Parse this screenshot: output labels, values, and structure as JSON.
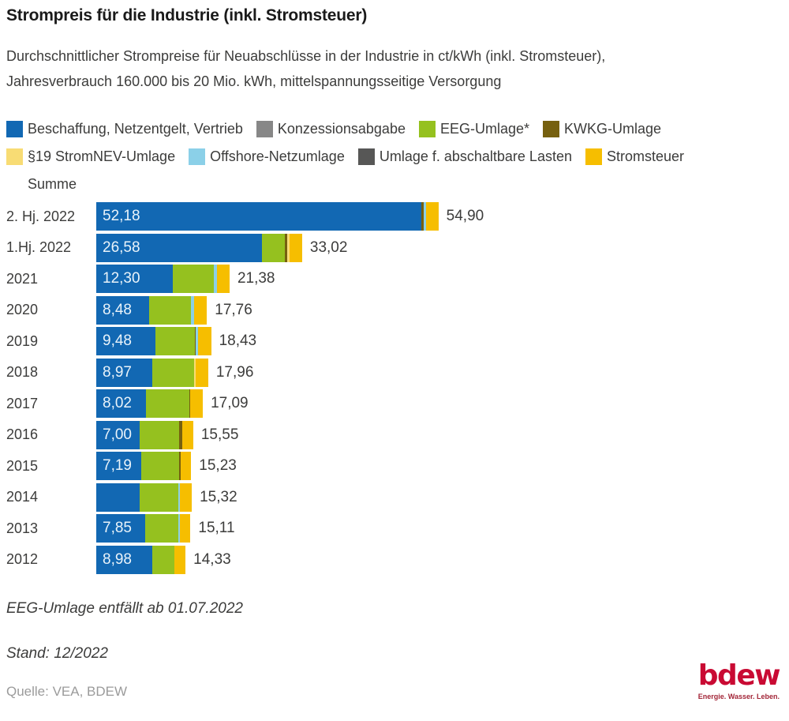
{
  "header": {
    "title": "Strompreis für die Industrie (inkl. Stromsteuer)",
    "subtitle": "Durchschnittlicher Strompreise für Neuabschlüsse in der Industrie in ct/kWh (inkl. Stromsteuer),\nJahresverbrauch 160.000 bis 20 Mio. kWh, mittelspannungsseitige Versorgung"
  },
  "legend": {
    "items": [
      {
        "label": "Beschaffung, Netzentgelt, Vertrieb",
        "color_key": "beschaffung"
      },
      {
        "label": "Konzessionsabgabe",
        "color_key": "konzession"
      },
      {
        "label": "EEG-Umlage*",
        "color_key": "eeg"
      },
      {
        "label": "KWKG-Umlage",
        "color_key": "kwkg"
      },
      {
        "label": "§19 StromNEV-Umlage",
        "color_key": "s19"
      },
      {
        "label": "Offshore-Netzumlage",
        "color_key": "offshore"
      },
      {
        "label": "Umlage f. abschaltbare Lasten",
        "color_key": "abla"
      },
      {
        "label": "Stromsteuer",
        "color_key": "stromsteuer"
      },
      {
        "label": "Summe",
        "color_key": null
      }
    ]
  },
  "chart_data": {
    "type": "bar",
    "orientation": "horizontal",
    "stacked": true,
    "unit": "ct/kWh",
    "legend_position": "top",
    "grid": false,
    "colors": {
      "beschaffung": "#1268b3",
      "konzession": "#878787",
      "eeg": "#95c11f",
      "kwkg": "#76600f",
      "s19": "#f8dc74",
      "offshore": "#8bd0e8",
      "abla": "#575756",
      "stromsteuer": "#f6be00"
    },
    "segment_names": {
      "beschaffung": "Beschaffung, Netzentgelt, Vertrieb",
      "konzession": "Konzessionsabgabe",
      "eeg": "EEG-Umlage*",
      "kwkg": "KWKG-Umlage",
      "s19": "§19 StromNEV-Umlage",
      "offshore": "Offshore-Netzumlage",
      "abla": "Umlage f. abschaltbare Lasten",
      "stromsteuer": "Stromsteuer"
    },
    "rows": [
      {
        "category": "2. Hj. 2022",
        "value_label": "52,18",
        "total_label": "54,90",
        "total": 54.9,
        "segments": [
          {
            "key": "beschaffung",
            "value": 52.18
          },
          {
            "key": "kwkg",
            "value": 0.38
          },
          {
            "key": "offshore",
            "value": 0.42
          },
          {
            "key": "stromsteuer",
            "value": 1.92
          }
        ]
      },
      {
        "category": "1.Hj. 2022",
        "value_label": "26,58",
        "total_label": "33,02",
        "total": 33.02,
        "segments": [
          {
            "key": "beschaffung",
            "value": 26.58
          },
          {
            "key": "eeg",
            "value": 3.72
          },
          {
            "key": "kwkg",
            "value": 0.38
          },
          {
            "key": "s19",
            "value": 0.35
          },
          {
            "key": "stromsteuer",
            "value": 1.99
          }
        ]
      },
      {
        "category": "2021",
        "value_label": "12,30",
        "total_label": "21,38",
        "total": 21.38,
        "segments": [
          {
            "key": "beschaffung",
            "value": 12.3
          },
          {
            "key": "eeg",
            "value": 6.5
          },
          {
            "key": "offshore",
            "value": 0.53
          },
          {
            "key": "stromsteuer",
            "value": 2.05
          }
        ]
      },
      {
        "category": "2020",
        "value_label": "8,48",
        "total_label": "17,76",
        "total": 17.76,
        "segments": [
          {
            "key": "beschaffung",
            "value": 8.48
          },
          {
            "key": "eeg",
            "value": 6.76
          },
          {
            "key": "offshore",
            "value": 0.47
          },
          {
            "key": "stromsteuer",
            "value": 2.05
          }
        ]
      },
      {
        "category": "2019",
        "value_label": "9,48",
        "total_label": "18,43",
        "total": 18.43,
        "segments": [
          {
            "key": "beschaffung",
            "value": 9.48
          },
          {
            "key": "eeg",
            "value": 6.41
          },
          {
            "key": "kwkg",
            "value": 0.1
          },
          {
            "key": "offshore",
            "value": 0.39
          },
          {
            "key": "stromsteuer",
            "value": 2.05
          }
        ]
      },
      {
        "category": "2018",
        "value_label": "8,97",
        "total_label": "17,96",
        "total": 17.96,
        "segments": [
          {
            "key": "beschaffung",
            "value": 8.97
          },
          {
            "key": "eeg",
            "value": 6.79
          },
          {
            "key": "s19",
            "value": 0.15
          },
          {
            "key": "stromsteuer",
            "value": 2.05
          }
        ]
      },
      {
        "category": "2017",
        "value_label": "8,02",
        "total_label": "17,09",
        "total": 17.09,
        "segments": [
          {
            "key": "beschaffung",
            "value": 8.02
          },
          {
            "key": "eeg",
            "value": 6.88
          },
          {
            "key": "kwkg",
            "value": 0.14
          },
          {
            "key": "stromsteuer",
            "value": 2.05
          }
        ]
      },
      {
        "category": "2016",
        "value_label": "7,00",
        "total_label": "15,55",
        "total": 15.55,
        "segments": [
          {
            "key": "beschaffung",
            "value": 7.0
          },
          {
            "key": "eeg",
            "value": 6.35
          },
          {
            "key": "kwkg",
            "value": 0.4
          },
          {
            "key": "stromsteuer",
            "value": 1.8
          }
        ]
      },
      {
        "category": "2015",
        "value_label": "7,19",
        "total_label": "15,23",
        "total": 15.23,
        "segments": [
          {
            "key": "beschaffung",
            "value": 7.19
          },
          {
            "key": "eeg",
            "value": 6.17
          },
          {
            "key": "kwkg",
            "value": 0.25
          },
          {
            "key": "stromsteuer",
            "value": 1.62
          }
        ]
      },
      {
        "category": "2014",
        "value_label": "",
        "total_label": "15,32",
        "total": 15.32,
        "segments": [
          {
            "key": "beschaffung",
            "value": 6.96
          },
          {
            "key": "eeg",
            "value": 6.24
          },
          {
            "key": "offshore",
            "value": 0.25
          },
          {
            "key": "stromsteuer",
            "value": 1.87
          }
        ]
      },
      {
        "category": "2013",
        "value_label": "7,85",
        "total_label": "15,11",
        "total": 15.11,
        "segments": [
          {
            "key": "beschaffung",
            "value": 7.85
          },
          {
            "key": "eeg",
            "value": 5.28
          },
          {
            "key": "offshore",
            "value": 0.25
          },
          {
            "key": "stromsteuer",
            "value": 1.73
          }
        ]
      },
      {
        "category": "2012",
        "value_label": "8,98",
        "total_label": "14,33",
        "total": 14.33,
        "segments": [
          {
            "key": "beschaffung",
            "value": 8.98
          },
          {
            "key": "eeg",
            "value": 3.59
          },
          {
            "key": "stromsteuer",
            "value": 1.76
          }
        ]
      }
    ],
    "annotation": "EEG-Umlage entfällt ab 01.07.2022"
  },
  "footer": {
    "note1": "EEG-Umlage entfällt ab 01.07.2022",
    "note2": "Stand: 12/2022",
    "source": "Quelle: VEA, BDEW",
    "logo_text": "bdew",
    "logo_tagline": "Energie. Wasser. Leben.",
    "logo_color": "#c90a33",
    "logo_tagline_color": "#a32638"
  }
}
